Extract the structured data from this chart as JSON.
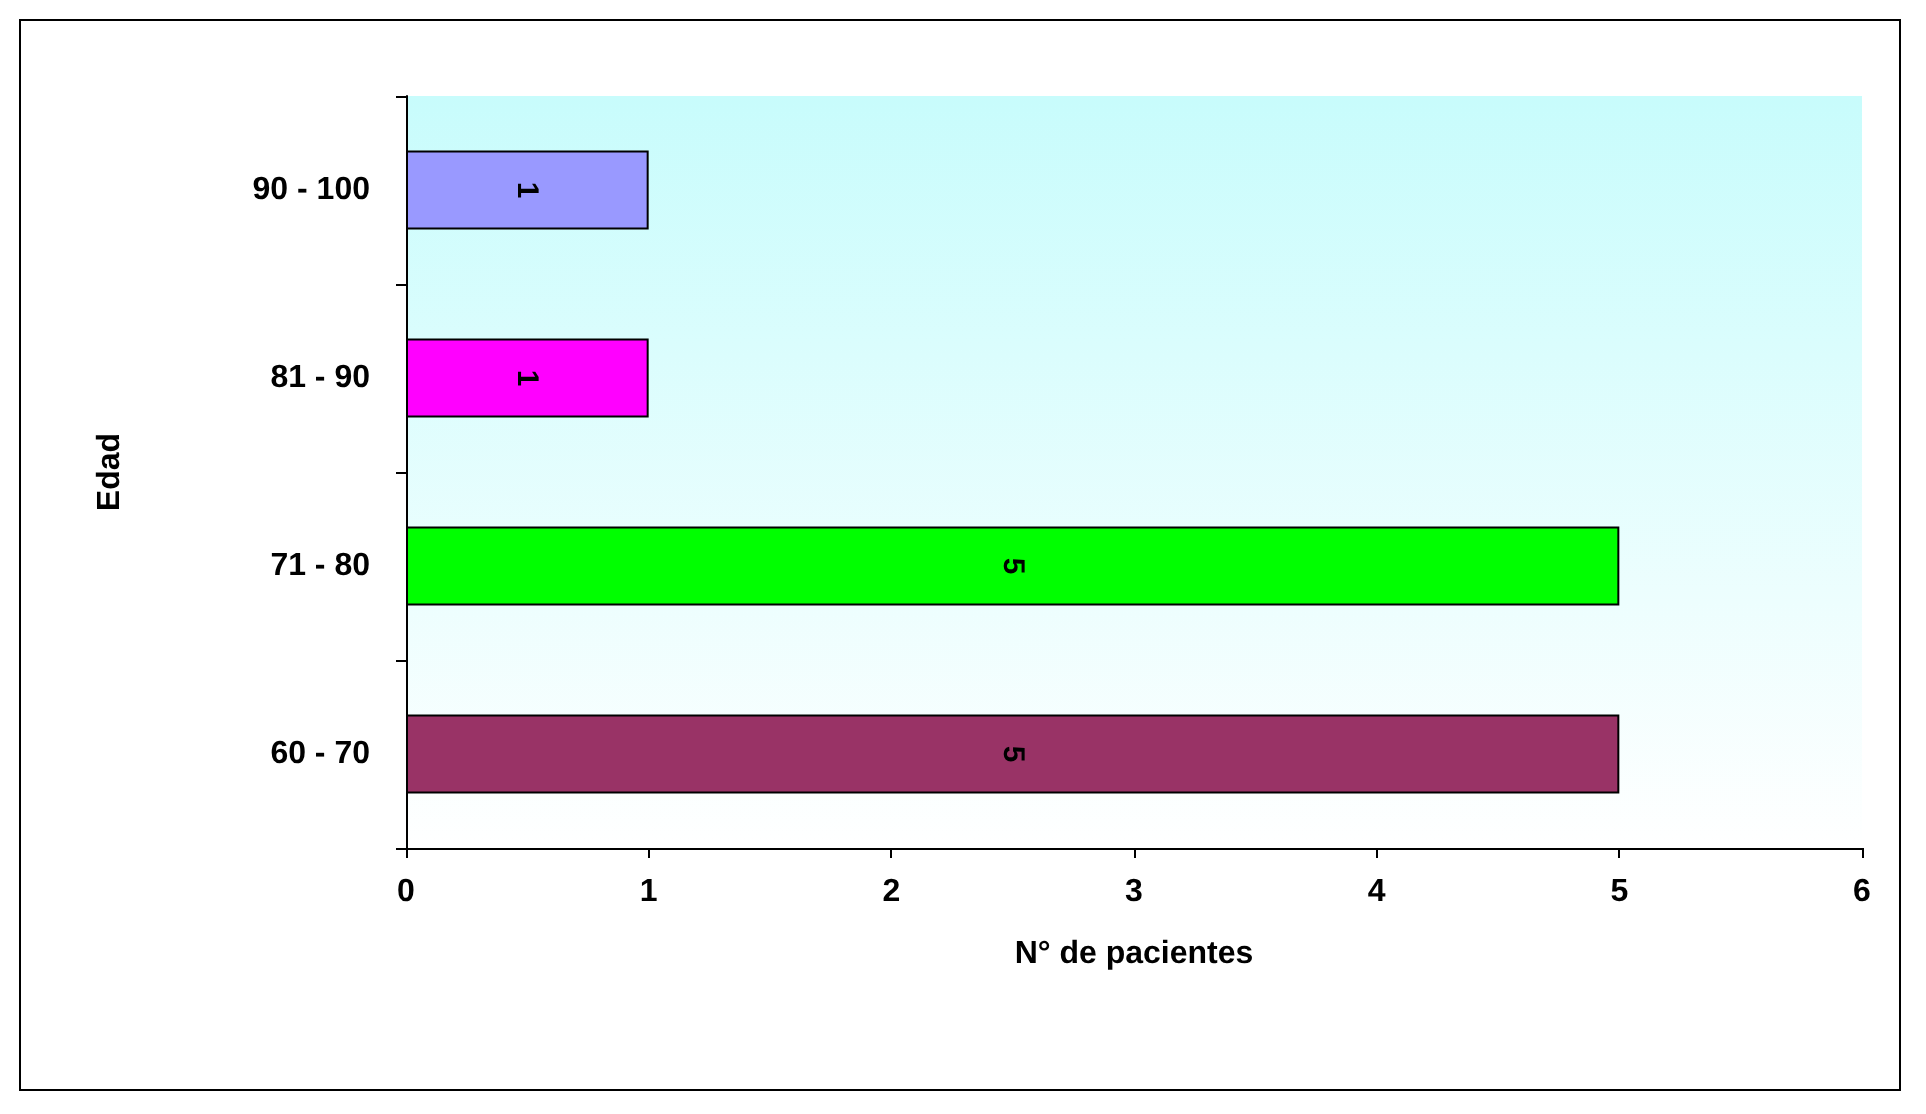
{
  "chart_data": {
    "type": "bar",
    "orientation": "horizontal",
    "xlabel": "N° de pacientes",
    "ylabel": "Edad",
    "categories": [
      "90 - 100",
      "81 - 90",
      "71 - 80",
      "60 - 70"
    ],
    "values": [
      1,
      1,
      5,
      5
    ],
    "colors": [
      "#9999ff",
      "#ff00ff",
      "#00ff00",
      "#993366"
    ],
    "xlim": [
      0,
      6
    ],
    "xticks": [
      0,
      1,
      2,
      3,
      4,
      5,
      6
    ],
    "grid": false,
    "data_labels": true
  }
}
